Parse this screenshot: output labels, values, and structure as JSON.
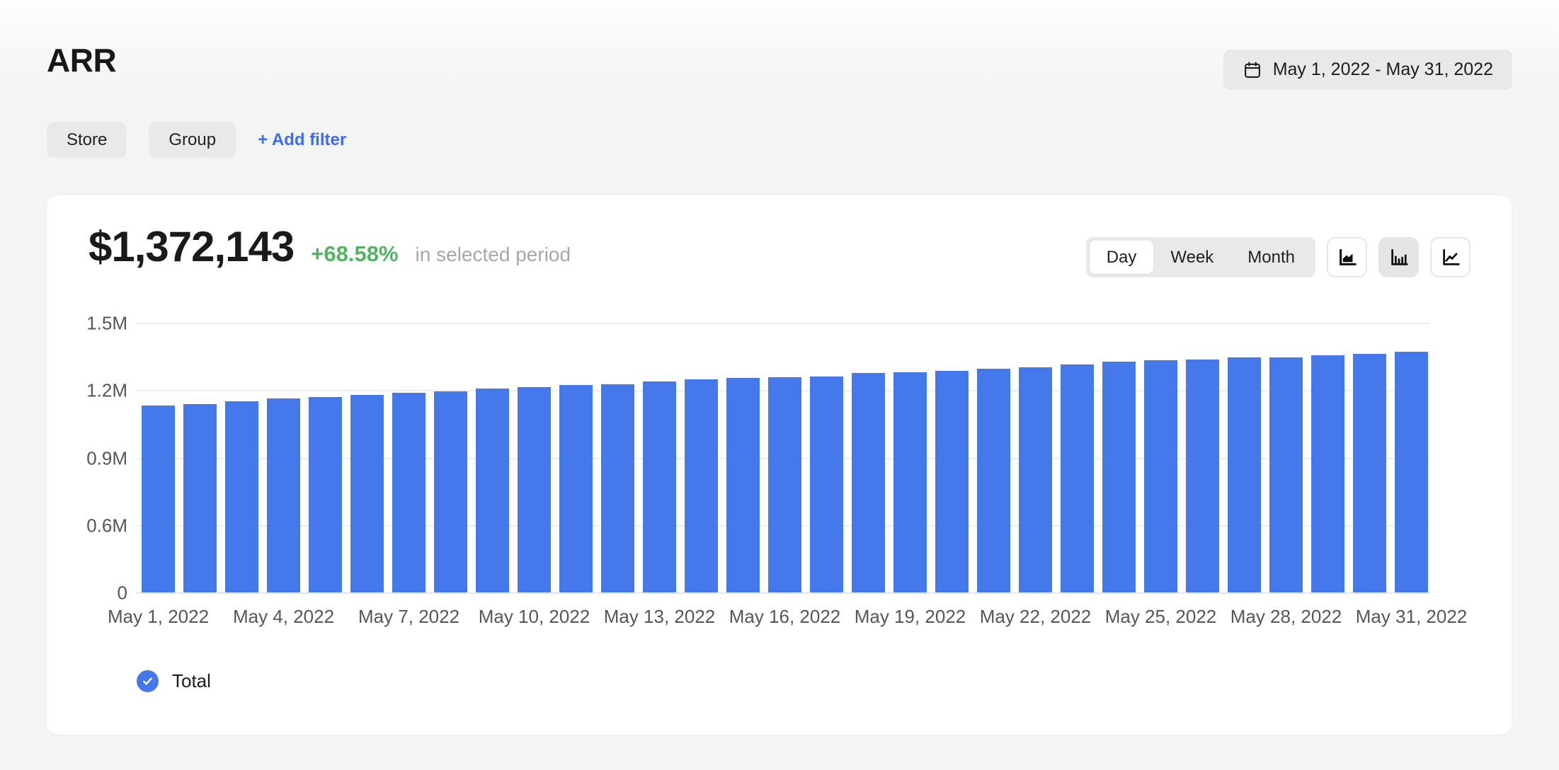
{
  "page": {
    "title": "ARR",
    "date_range": "May 1, 2022 - May 31, 2022",
    "filters": {
      "store": "Store",
      "group": "Group",
      "add_filter": "+ Add filter"
    }
  },
  "metric": {
    "value": "$1,372,143",
    "change": "+68.58%",
    "caption": "in selected period"
  },
  "granularity": {
    "options": [
      "Day",
      "Week",
      "Month"
    ],
    "selected": "Day"
  },
  "chart_type": {
    "options": [
      "area",
      "bar",
      "line"
    ],
    "selected": "bar"
  },
  "legend": {
    "label": "Total",
    "checked": true
  },
  "colors": {
    "bar": "#4478EB",
    "positive": "#52b363",
    "link": "#3e6bf3",
    "background": "#f4f4f5",
    "card": "#ffffff"
  },
  "chart_data": {
    "type": "bar",
    "title": "ARR",
    "xlabel": "",
    "ylabel": "",
    "grid": true,
    "legend_position": "bottom-left",
    "y_ticks": [
      {
        "label": "0",
        "value": 0
      },
      {
        "label": "0.6M",
        "value": 600000
      },
      {
        "label": "0.9M",
        "value": 900000
      },
      {
        "label": "1.2M",
        "value": 1200000
      },
      {
        "label": "1.5M",
        "value": 1500000
      }
    ],
    "x_tick_every": 3,
    "categories": [
      "May 1, 2022",
      "May 2, 2022",
      "May 3, 2022",
      "May 4, 2022",
      "May 5, 2022",
      "May 6, 2022",
      "May 7, 2022",
      "May 8, 2022",
      "May 9, 2022",
      "May 10, 2022",
      "May 11, 2022",
      "May 12, 2022",
      "May 13, 2022",
      "May 14, 2022",
      "May 15, 2022",
      "May 16, 2022",
      "May 17, 2022",
      "May 18, 2022",
      "May 19, 2022",
      "May 20, 2022",
      "May 21, 2022",
      "May 22, 2022",
      "May 23, 2022",
      "May 24, 2022",
      "May 25, 2022",
      "May 26, 2022",
      "May 27, 2022",
      "May 28, 2022",
      "May 29, 2022",
      "May 30, 2022",
      "May 31, 2022"
    ],
    "series": [
      {
        "name": "Total",
        "values": [
          1131642,
          1138774,
          1151025,
          1162388,
          1170115,
          1179236,
          1186857,
          1195918,
          1205934,
          1212706,
          1222633,
          1227281,
          1239472,
          1248555,
          1253984,
          1257041,
          1260758,
          1275319,
          1279822,
          1285261,
          1294317,
          1302024,
          1313389,
          1327945,
          1333302,
          1337791,
          1344726,
          1347012,
          1354578,
          1361503,
          1372143
        ]
      }
    ]
  }
}
